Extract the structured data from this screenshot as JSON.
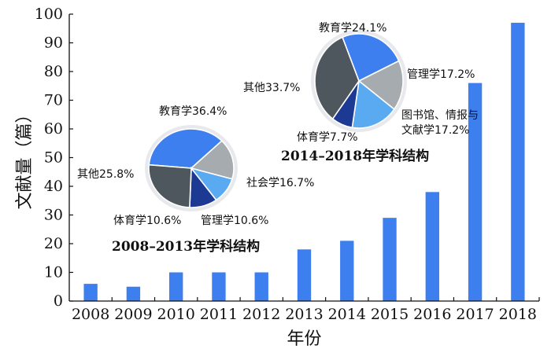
{
  "chart_data": [
    {
      "type": "bar",
      "categories": [
        "2008",
        "2009",
        "2010",
        "2011",
        "2012",
        "2013",
        "2014",
        "2015",
        "2016",
        "2017",
        "2018"
      ],
      "values": [
        6,
        5,
        10,
        10,
        10,
        18,
        21,
        29,
        38,
        76,
        97
      ],
      "xlabel": "年份",
      "ylabel": "文献量（篇）",
      "ylim": [
        0,
        100
      ],
      "yticks": [
        0,
        10,
        20,
        30,
        40,
        50,
        60,
        70,
        80,
        90,
        100
      ],
      "grid": false,
      "bar_color": "#3d7fef"
    },
    {
      "type": "pie",
      "title": "2008–2013年学科结构",
      "slices": [
        {
          "name": "教育学",
          "label": "教育学36.4%",
          "value": 36.4,
          "color": "#3d7fef"
        },
        {
          "name": "社会学",
          "label": "社会学16.7%",
          "value": 16.7,
          "color": "#a6abb0"
        },
        {
          "name": "管理学",
          "label": "管理学10.6%",
          "value": 10.6,
          "color": "#5aaaf2"
        },
        {
          "name": "体育学",
          "label": "体育学10.6%",
          "value": 10.6,
          "color": "#1c3a94"
        },
        {
          "name": "其他",
          "label": "其他25.8%",
          "value": 25.8,
          "color": "#4e565e"
        }
      ]
    },
    {
      "type": "pie",
      "title": "2014–2018年学科结构",
      "slices": [
        {
          "name": "教育学",
          "label": "教育学24.1%",
          "value": 24.1,
          "color": "#3d7fef"
        },
        {
          "name": "管理学",
          "label": "管理学17.2%",
          "value": 17.2,
          "color": "#a6abb0"
        },
        {
          "name": "图书馆、情报与文献学",
          "label_lines": [
            "图书馆、情报与",
            "文献学17.2%"
          ],
          "value": 17.2,
          "color": "#5aaaf2"
        },
        {
          "name": "体育学",
          "label": "体育学7.7%",
          "value": 7.7,
          "color": "#1c3a94"
        },
        {
          "name": "其他",
          "label": "其他33.7%",
          "value": 33.7,
          "color": "#4e565e"
        }
      ]
    }
  ]
}
